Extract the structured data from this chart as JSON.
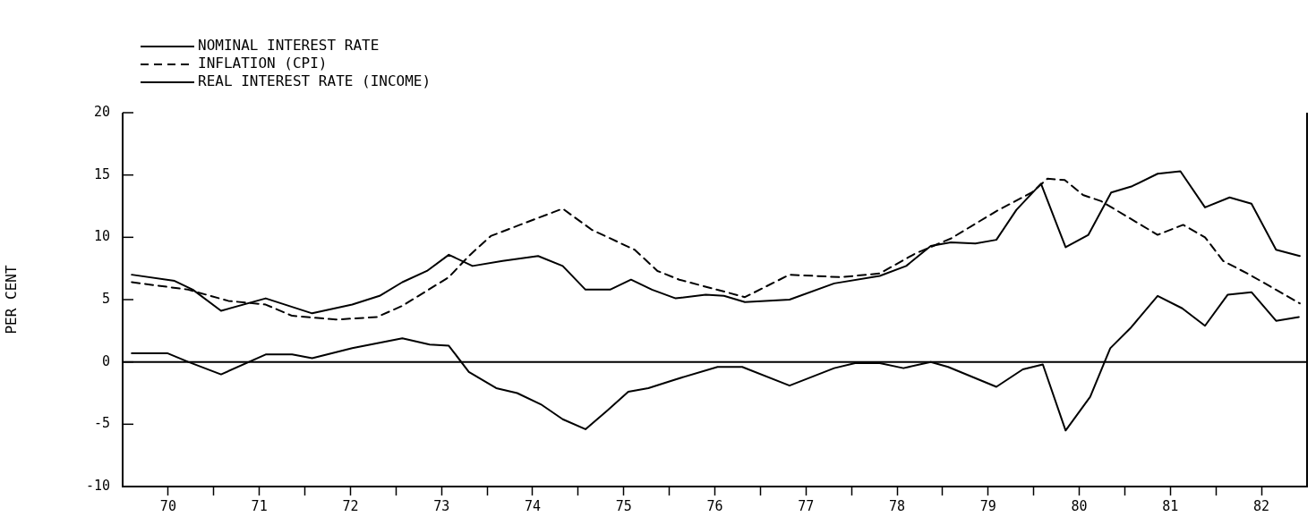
{
  "chart_data": {
    "type": "line",
    "ylabel": "PER CENT",
    "xlim": [
      69.5,
      82.5
    ],
    "ylim": [
      -10,
      20
    ],
    "yticks": [
      -10,
      -5,
      0,
      5,
      10,
      15,
      20
    ],
    "xticks": [
      70,
      {
        "value": 70.5,
        "label": null
      },
      71,
      {
        "value": 71.5,
        "label": null
      },
      72,
      {
        "value": 72.5,
        "label": null
      },
      73,
      {
        "value": 73.5,
        "label": null
      },
      74,
      {
        "value": 74.5,
        "label": null
      },
      75,
      {
        "value": 75.5,
        "label": null
      },
      76,
      {
        "value": 76.5,
        "label": null
      },
      77,
      {
        "value": 77.5,
        "label": null
      },
      78,
      {
        "value": 78.5,
        "label": null
      },
      79,
      {
        "value": 79.5,
        "label": null
      },
      80,
      {
        "value": 80.5,
        "label": null
      },
      81,
      {
        "value": 81.5,
        "label": null
      },
      82
    ],
    "grid": false,
    "legend": "top left",
    "marker": "none",
    "ref_lines": [
      {
        "axis": "y",
        "value": 0,
        "color": "#000000"
      }
    ],
    "series": [
      {
        "name": "NOMINAL INTEREST RATE",
        "color": "#000000",
        "line_style": "solid",
        "x": [
          69.6,
          70.07,
          70.27,
          70.58,
          71.07,
          71.58,
          72.02,
          72.32,
          72.57,
          72.84,
          73.08,
          73.34,
          73.67,
          74.06,
          74.33,
          74.58,
          74.85,
          75.08,
          75.31,
          75.57,
          75.9,
          76.1,
          76.33,
          76.82,
          77.31,
          77.81,
          78.1,
          78.37,
          78.59,
          78.86,
          79.09,
          79.31,
          79.58,
          79.85,
          80.1,
          80.35,
          80.58,
          80.86,
          81.11,
          81.38,
          81.65,
          81.89,
          82.16,
          82.42
        ],
        "values": [
          7.0,
          6.5,
          5.8,
          4.1,
          5.1,
          3.9,
          4.6,
          5.3,
          6.4,
          7.3,
          8.6,
          7.7,
          8.1,
          8.5,
          7.7,
          5.8,
          5.8,
          6.6,
          5.8,
          5.1,
          5.4,
          5.3,
          4.8,
          5.0,
          6.3,
          6.9,
          7.7,
          9.3,
          9.6,
          9.5,
          9.8,
          12.2,
          14.3,
          9.2,
          10.2,
          13.6,
          14.1,
          15.1,
          15.3,
          12.4,
          13.2,
          12.7,
          9.0,
          8.5
        ]
      },
      {
        "name": "INFLATION (CPI)",
        "color": "#000000",
        "line_style": "dashed",
        "x": [
          69.6,
          70.22,
          70.66,
          71.07,
          71.36,
          71.84,
          72.29,
          72.57,
          73.08,
          73.3,
          73.54,
          73.86,
          74.33,
          74.65,
          75.12,
          75.37,
          75.61,
          76.33,
          76.82,
          77.38,
          77.81,
          78.2,
          78.59,
          79.09,
          79.48,
          79.65,
          79.84,
          80.04,
          80.24,
          80.86,
          81.14,
          81.38,
          81.58,
          81.87,
          82.42
        ],
        "values": [
          6.4,
          5.8,
          4.9,
          4.6,
          3.7,
          3.4,
          3.6,
          4.5,
          6.8,
          8.5,
          10.1,
          11.0,
          12.3,
          10.6,
          9.0,
          7.3,
          6.6,
          5.2,
          7.0,
          6.8,
          7.1,
          8.7,
          9.9,
          12.1,
          13.6,
          14.7,
          14.6,
          13.4,
          12.9,
          10.2,
          11.0,
          10.0,
          8.1,
          7.0,
          4.7
        ]
      },
      {
        "name": "REAL INTEREST RATE (INCOME)",
        "color": "#000000",
        "line_style": "solid",
        "x": [
          69.6,
          69.99,
          70.22,
          70.58,
          71.07,
          71.36,
          71.58,
          72.02,
          72.57,
          72.87,
          73.08,
          73.3,
          73.6,
          73.83,
          74.09,
          74.33,
          74.58,
          74.82,
          75.05,
          75.27,
          75.57,
          76.03,
          76.3,
          76.82,
          77.31,
          77.54,
          77.81,
          78.07,
          78.37,
          78.56,
          79.09,
          79.38,
          79.6,
          79.85,
          80.12,
          80.34,
          80.56,
          80.86,
          81.13,
          81.38,
          81.63,
          81.89,
          82.16,
          82.41
        ],
        "values": [
          0.7,
          0.7,
          0.0,
          -1.0,
          0.6,
          0.6,
          0.3,
          1.1,
          1.9,
          1.4,
          1.3,
          -0.8,
          -2.1,
          -2.5,
          -3.4,
          -4.6,
          -5.4,
          -3.9,
          -2.4,
          -2.1,
          -1.4,
          -0.4,
          -0.4,
          -1.9,
          -0.5,
          -0.1,
          -0.1,
          -0.5,
          0.0,
          -0.4,
          -2.0,
          -0.6,
          -0.2,
          -5.5,
          -2.8,
          1.1,
          2.7,
          5.3,
          4.3,
          2.9,
          5.4,
          5.6,
          3.3,
          3.6
        ]
      }
    ]
  }
}
